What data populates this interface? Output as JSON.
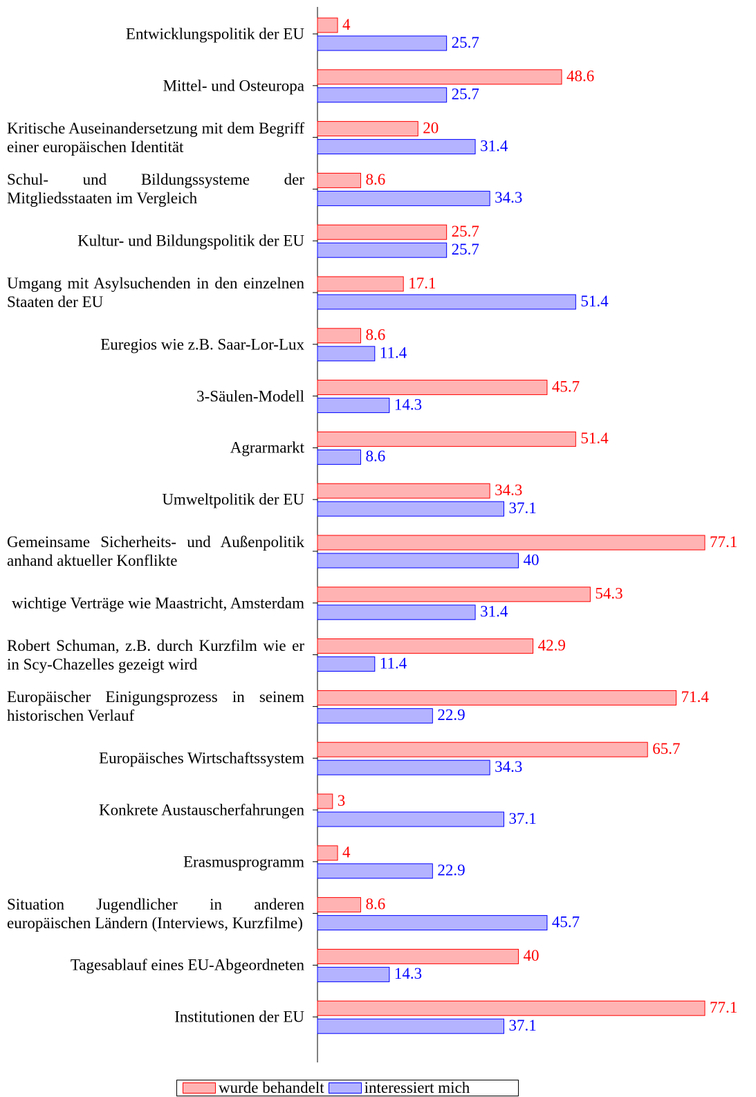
{
  "chart_data": {
    "type": "barh",
    "categories": [
      "Entwicklungspolitik der EU",
      "Mittel- und Osteuropa",
      "Kritische Auseinandersetzung mit dem Begriff einer europäischen Identität",
      "Schul- und Bildungssysteme der Mitgliedsstaaten im Vergleich",
      "Kultur- und Bildungspolitik der EU",
      "Umgang mit Asylsuchenden in den einzelnen Staaten der EU",
      "Euregios wie z.B. Saar-Lor-Lux",
      "3-Säulen-Modell",
      "Agrarmarkt",
      "Umweltpolitik der EU",
      "Gemeinsame Sicherheits- und Außenpolitik anhand aktueller Konflikte",
      "wichtige Verträge wie Maastricht, Amsterdam",
      "Robert Schuman, z.B. durch Kurzfilm wie er in Scy-Chazelles gezeigt wird",
      "Europäischer Einigungsprozess in seinem historischen Verlauf",
      "Europäisches Wirtschaftssystem",
      "Konkrete Austauscherfahrungen",
      "Erasmusprogramm",
      "Situation Jugendlicher in anderen europäischen Ländern (Interviews, Kurzfilme)",
      "Tagesablauf eines EU-Abgeordneten",
      "Institutionen der EU"
    ],
    "series": [
      {
        "name": "wurde behandelt",
        "color": "#ff0000",
        "fill": "#ffb3b3",
        "values": [
          4,
          48.6,
          20,
          8.6,
          25.7,
          17.1,
          8.6,
          45.7,
          51.4,
          34.3,
          77.1,
          54.3,
          42.9,
          71.4,
          65.7,
          3,
          4,
          8.6,
          40,
          77.1
        ]
      },
      {
        "name": "interessiert mich",
        "color": "#0000ff",
        "fill": "#b3b3ff",
        "values": [
          25.7,
          25.7,
          31.4,
          34.3,
          25.7,
          51.4,
          11.4,
          14.3,
          8.6,
          37.1,
          40,
          31.4,
          11.4,
          22.9,
          34.3,
          37.1,
          22.9,
          45.7,
          14.3,
          37.1
        ]
      }
    ],
    "legend": "bottom"
  }
}
